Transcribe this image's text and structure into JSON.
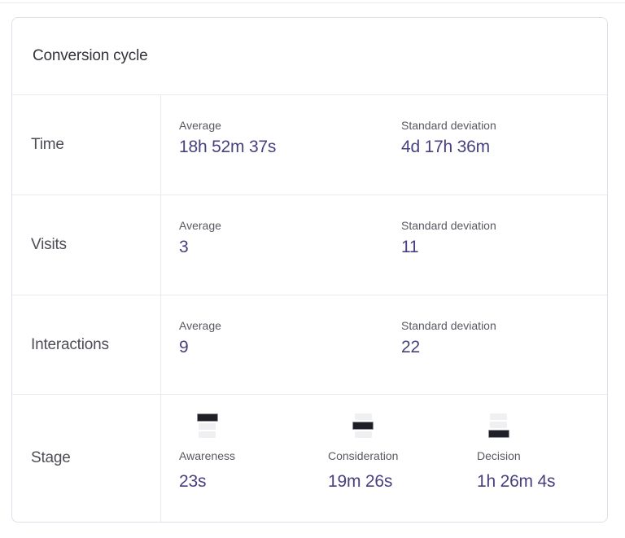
{
  "card": {
    "title": "Conversion cycle",
    "colors": {
      "value_text": "#474180",
      "label_text": "#585862",
      "row_label_text": "#4d4d57",
      "card_border": "#dfe1ea",
      "divider": "#e9eaf0",
      "funnel_active": "#1e1f27",
      "funnel_inactive": "#f0f0f2"
    },
    "rows": [
      {
        "label": "Time",
        "metrics": [
          {
            "label": "Average",
            "value": "18h 52m 37s"
          },
          {
            "label": "Standard deviation",
            "value": "4d 17h 36m"
          }
        ]
      },
      {
        "label": "Visits",
        "metrics": [
          {
            "label": "Average",
            "value": "3"
          },
          {
            "label": "Standard deviation",
            "value": "11"
          }
        ]
      },
      {
        "label": "Interactions",
        "metrics": [
          {
            "label": "Average",
            "value": "9"
          },
          {
            "label": "Standard deviation",
            "value": "22"
          }
        ]
      },
      {
        "label": "Stage",
        "stages": [
          {
            "label": "Awareness",
            "value": "23s",
            "active_bar": 0
          },
          {
            "label": "Consideration",
            "value": "19m 26s",
            "active_bar": 1
          },
          {
            "label": "Decision",
            "value": "1h 26m 4s",
            "active_bar": 2
          }
        ]
      }
    ]
  }
}
